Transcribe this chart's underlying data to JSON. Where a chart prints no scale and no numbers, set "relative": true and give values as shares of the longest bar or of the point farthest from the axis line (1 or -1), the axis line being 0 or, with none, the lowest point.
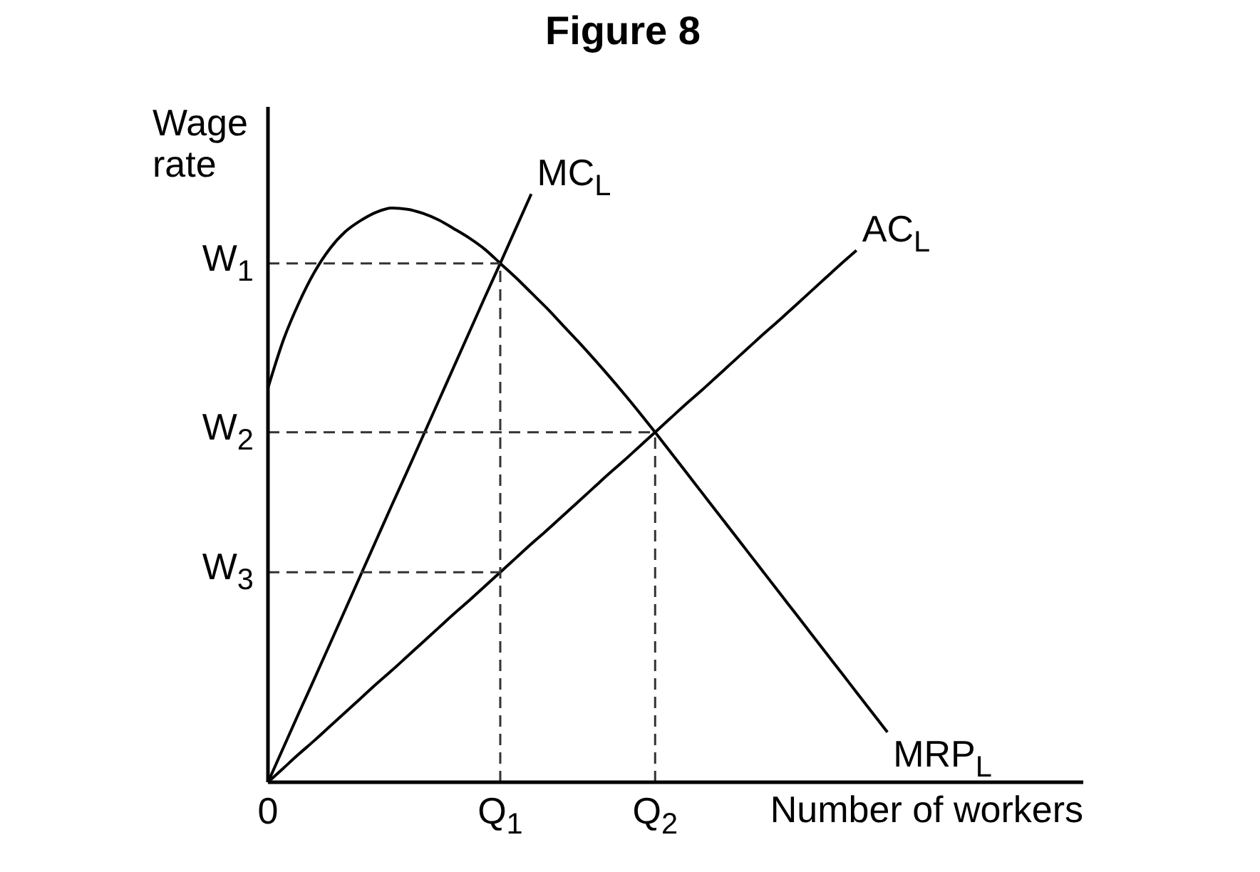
{
  "chart_data": {
    "type": "line",
    "title": "Figure 8",
    "xlabel": "Number of workers",
    "ylabel": "Wage rate",
    "relative": true,
    "marker": "none",
    "line_style": "solid",
    "categories": [
      "0",
      null,
      null,
      null,
      null,
      null,
      null,
      null,
      null,
      null,
      null,
      null,
      null,
      null,
      null,
      "Q$_{1}$",
      null,
      null,
      null,
      null,
      null,
      null,
      null,
      null,
      null,
      "Q$_{2}$",
      null,
      null,
      null,
      null,
      null,
      null,
      null,
      null,
      null,
      null,
      null,
      null,
      null,
      null,
      null,
      null,
      null,
      null,
      null,
      null,
      null,
      null,
      null,
      null,
      null,
      null,
      null
    ],
    "series": [
      {
        "name": "MC$_{L}$",
        "color": "#000000",
        "values": [
          0,
          0.059,
          0.118,
          0.176,
          0.235,
          0.294,
          0.353,
          0.412,
          0.471,
          0.529,
          0.588,
          0.647,
          0.706,
          0.765,
          0.824,
          0.882,
          0.941,
          1,
          null,
          null,
          null,
          null,
          null,
          null,
          null,
          null,
          null,
          null,
          null,
          null,
          null,
          null,
          null,
          null,
          null,
          null,
          null,
          null,
          null,
          null,
          null,
          null,
          null,
          null,
          null,
          null,
          null,
          null,
          null,
          null,
          null,
          null,
          null
        ]
      },
      {
        "name": "AC$_{L}$",
        "color": "#000000",
        "values": [
          0,
          0.024,
          0.048,
          0.071,
          0.095,
          0.119,
          0.143,
          0.167,
          0.19,
          0.214,
          0.238,
          0.262,
          0.286,
          0.309,
          0.333,
          0.357,
          0.381,
          0.405,
          0.428,
          0.452,
          0.476,
          0.5,
          0.524,
          0.547,
          0.571,
          0.595,
          0.619,
          0.643,
          0.666,
          0.69,
          0.714,
          0.738,
          0.762,
          0.785,
          0.809,
          0.833,
          0.857,
          0.881,
          0.904,
          null,
          null,
          null,
          null,
          null,
          null,
          null,
          null,
          null,
          null,
          null,
          null,
          null,
          null
        ]
      },
      {
        "name": "MRP$_{L}$",
        "color": "#000000",
        "values": [
          0.67,
          0.752,
          0.815,
          0.867,
          0.907,
          0.936,
          0.955,
          0.969,
          0.976,
          0.974,
          0.967,
          0.956,
          0.941,
          0.925,
          0.906,
          0.882,
          0.858,
          0.832,
          0.806,
          0.778,
          0.75,
          0.721,
          0.691,
          0.66,
          0.628,
          0.595,
          0.561,
          0.527,
          0.493,
          0.459,
          0.425,
          0.391,
          0.357,
          0.323,
          0.289,
          0.255,
          0.221,
          0.187,
          0.153,
          0.119,
          0.085,
          null,
          null,
          null,
          null,
          null,
          null,
          null,
          null,
          null,
          null,
          null,
          null
        ]
      },
      {
        "color": "#333333",
        "line_style": "dashed",
        "values": [
          0.882,
          0.882,
          0.882,
          0.882,
          0.882,
          0.882,
          0.882,
          0.882,
          0.882,
          0.882,
          0.882,
          0.882,
          0.882,
          0.882,
          0.882,
          0.882,
          null,
          null,
          null,
          null,
          null,
          null,
          null,
          null,
          null,
          null,
          null,
          null,
          null,
          null,
          null,
          null,
          null,
          null,
          null,
          null,
          null,
          null,
          null,
          null,
          null,
          null,
          null,
          null,
          null,
          null,
          null,
          null,
          null,
          null,
          null,
          null,
          null
        ]
      },
      {
        "color": "#333333",
        "line_style": "dashed",
        "values": [
          0.595,
          0.595,
          0.595,
          0.595,
          0.595,
          0.595,
          0.595,
          0.595,
          0.595,
          0.595,
          0.595,
          0.595,
          0.595,
          0.595,
          0.595,
          0.595,
          0.595,
          0.595,
          0.595,
          0.595,
          0.595,
          0.595,
          0.595,
          0.595,
          0.595,
          0.595,
          null,
          null,
          null,
          null,
          null,
          null,
          null,
          null,
          null,
          null,
          null,
          null,
          null,
          null,
          null,
          null,
          null,
          null,
          null,
          null,
          null,
          null,
          null,
          null,
          null,
          null,
          null
        ]
      },
      {
        "color": "#333333",
        "line_style": "dashed",
        "values": [
          0.357,
          0.357,
          0.357,
          0.357,
          0.357,
          0.357,
          0.357,
          0.357,
          0.357,
          0.357,
          0.357,
          0.357,
          0.357,
          0.357,
          0.357,
          0.357,
          null,
          null,
          null,
          null,
          null,
          null,
          null,
          null,
          null,
          null,
          null,
          null,
          null,
          null,
          null,
          null,
          null,
          null,
          null,
          null,
          null,
          null,
          null,
          null,
          null,
          null,
          null,
          null,
          null,
          null,
          null,
          null,
          null,
          null,
          null,
          null,
          null
        ]
      }
    ],
    "ref_lines": [
      {
        "axis": "x",
        "value": "Q$_{1}$",
        "line_style": "dashed",
        "color": "#333333"
      },
      {
        "axis": "x",
        "value": "Q$_{2}$",
        "line_style": "dashed",
        "color": "#333333"
      }
    ],
    "annotations": [
      {
        "text": "W$_{1}$",
        "x": "0",
        "y": 0.882
      },
      {
        "text": "W$_{2}$",
        "x": "0",
        "y": 0.595
      },
      {
        "text": "W$_{3}$",
        "x": "0",
        "y": 0.357
      }
    ]
  }
}
